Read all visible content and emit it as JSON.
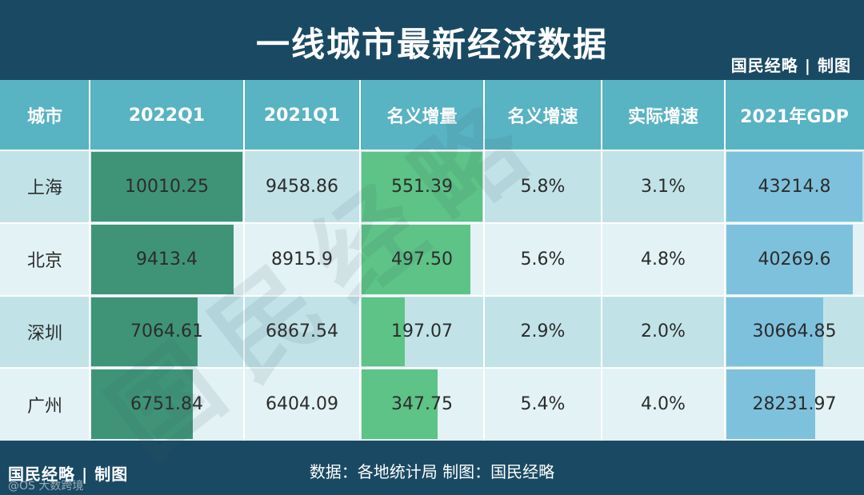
{
  "title": "一线城市最新经济数据",
  "brand": "国民经略 | 制图",
  "source_text": "数据：各地统计局   制图：国民经略",
  "credit_text": "@OS 大数跨境",
  "watermark_text": "国民经略",
  "colors": {
    "header_bg": "#1a4a63",
    "header_row": "#58b3c2",
    "bar_2022q1": "#3f9478",
    "bar_increment": "#5dc386",
    "bar_gdp": "#7ec1dd",
    "row_odd": "#c1e3e8",
    "row_even": "#e3f2f5"
  },
  "chart_data": {
    "type": "table",
    "columns": [
      "城市",
      "2022Q1",
      "2021Q1",
      "名义增量",
      "名义增速",
      "实际增速",
      "2021年GDP"
    ],
    "rows": [
      {
        "city": "上海",
        "q1_2022": "10010.25",
        "q1_2021": "9458.86",
        "increment": "551.39",
        "nominal_growth": "5.8%",
        "real_growth": "3.1%",
        "gdp_2021": "43214.8"
      },
      {
        "city": "北京",
        "q1_2022": "9413.4",
        "q1_2021": "8915.9",
        "increment": "497.50",
        "nominal_growth": "5.6%",
        "real_growth": "4.8%",
        "gdp_2021": "40269.6"
      },
      {
        "city": "深圳",
        "q1_2022": "7064.61",
        "q1_2021": "6867.54",
        "increment": "197.07",
        "nominal_growth": "2.9%",
        "real_growth": "2.0%",
        "gdp_2021": "30664.85"
      },
      {
        "city": "广州",
        "q1_2022": "6751.84",
        "q1_2021": "6404.09",
        "increment": "347.75",
        "nominal_growth": "5.4%",
        "real_growth": "4.0%",
        "gdp_2021": "28231.97"
      }
    ],
    "bar_columns": [
      "q1_2022",
      "increment",
      "gdp_2021"
    ]
  }
}
